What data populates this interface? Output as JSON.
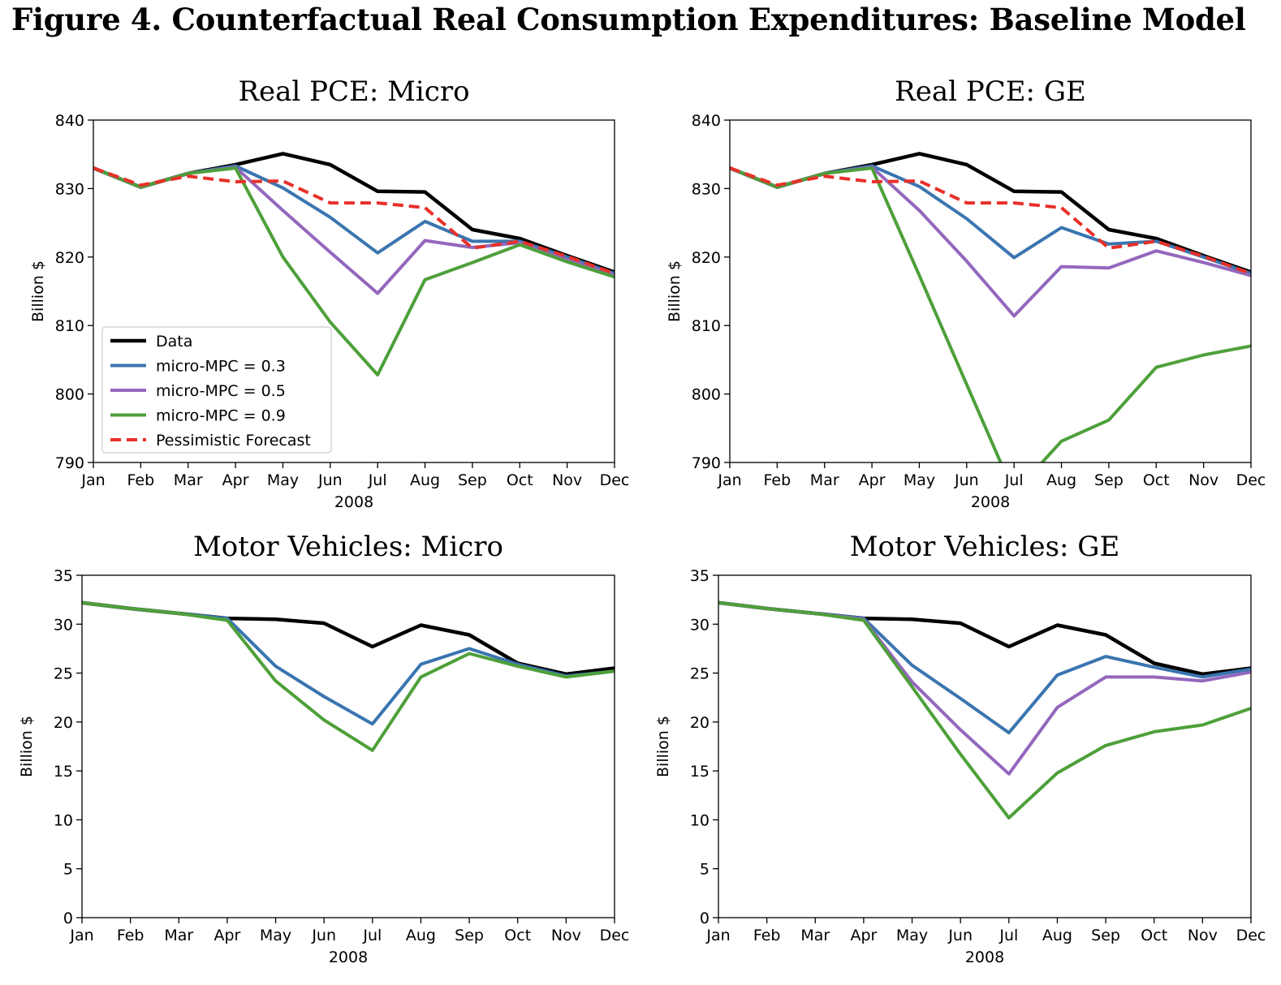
{
  "figure_title": "Figure 4. Counterfactual Real Consumption Expenditures: Baseline Model",
  "colors": {
    "Data": "#000000",
    "micro-MPC = 0.3": "#3a75b0",
    "micro-MPC = 0.5": "#9467bd",
    "micro-MPC = 0.9": "#4ea03a",
    "Pessimistic Forecast": "#e8302a"
  },
  "chart_data": [
    {
      "type": "line",
      "title": "Real PCE: Micro",
      "xlabel": "2008",
      "ylabel": "Billion $",
      "ylim": [
        790,
        840
      ],
      "yticks": [
        790,
        800,
        810,
        820,
        830,
        840
      ],
      "grid": false,
      "legend": "lower-left",
      "categories": [
        "Jan",
        "Feb",
        "Mar",
        "Apr",
        "May",
        "Jun",
        "Jul",
        "Aug",
        "Sep",
        "Oct",
        "Nov",
        "Dec"
      ],
      "series": [
        {
          "name": "Data",
          "style": "solid",
          "values": [
            833,
            830.2,
            832.2,
            833.5,
            835.1,
            833.5,
            829.6,
            829.5,
            824,
            822.7,
            820.2,
            817.8
          ]
        },
        {
          "name": "micro-MPC = 0.3",
          "style": "solid",
          "values": [
            833,
            830.2,
            832.2,
            833.3,
            830.1,
            825.8,
            820.6,
            825.2,
            822.3,
            822.3,
            820,
            817.6
          ]
        },
        {
          "name": "micro-MPC = 0.5",
          "style": "solid",
          "values": [
            833,
            830.2,
            832.2,
            833.1,
            826.8,
            820.7,
            814.7,
            822.4,
            821.4,
            822.1,
            819.6,
            817.4
          ]
        },
        {
          "name": "micro-MPC = 0.9",
          "style": "solid",
          "values": [
            833,
            830.2,
            832.2,
            833,
            820,
            810.5,
            802.8,
            816.7,
            819.2,
            821.8,
            819.3,
            817.1
          ]
        },
        {
          "name": "Pessimistic Forecast",
          "style": "dashed",
          "values": [
            833,
            830.5,
            831.8,
            831,
            831.1,
            827.9,
            827.9,
            827.2,
            821.3,
            822.3,
            820.1,
            817.6
          ]
        }
      ]
    },
    {
      "type": "line",
      "title": "Real PCE: GE",
      "xlabel": "2008",
      "ylabel": "Billion $",
      "ylim": [
        790,
        840
      ],
      "yticks": [
        790,
        800,
        810,
        820,
        830,
        840
      ],
      "grid": false,
      "categories": [
        "Jan",
        "Feb",
        "Mar",
        "Apr",
        "May",
        "Jun",
        "Jul",
        "Aug",
        "Sep",
        "Oct",
        "Nov",
        "Dec"
      ],
      "series": [
        {
          "name": "Data",
          "style": "solid",
          "values": [
            833,
            830.2,
            832.2,
            833.5,
            835.1,
            833.5,
            829.6,
            829.5,
            824,
            822.7,
            820.2,
            817.8
          ]
        },
        {
          "name": "micro-MPC = 0.3",
          "style": "solid",
          "values": [
            833,
            830.2,
            832.2,
            833.3,
            830.3,
            825.6,
            819.9,
            824.3,
            821.9,
            822.3,
            820,
            817.6
          ]
        },
        {
          "name": "micro-MPC = 0.5",
          "style": "solid",
          "values": [
            833,
            830.2,
            832.2,
            833.1,
            826.8,
            819.4,
            811.4,
            818.6,
            818.4,
            820.9,
            819.2,
            817.3
          ]
        },
        {
          "name": "micro-MPC = 0.9",
          "style": "solid",
          "values": [
            833,
            830.2,
            832.2,
            833,
            817.3,
            801.4,
            785.5,
            793.1,
            796.2,
            803.9,
            805.7,
            807
          ]
        },
        {
          "name": "Pessimistic Forecast",
          "style": "dashed",
          "values": [
            833,
            830.5,
            831.8,
            831,
            831.1,
            827.9,
            827.9,
            827.2,
            821.3,
            822.3,
            820.1,
            817.6
          ]
        }
      ]
    },
    {
      "type": "line",
      "title": "Motor Vehicles:  Micro",
      "xlabel": "2008",
      "ylabel": "Billion $",
      "ylim": [
        0,
        35
      ],
      "yticks": [
        0,
        5,
        10,
        15,
        20,
        25,
        30,
        35
      ],
      "grid": false,
      "categories": [
        "Jan",
        "Feb",
        "Mar",
        "Apr",
        "May",
        "Jun",
        "Jul",
        "Aug",
        "Sep",
        "Oct",
        "Nov",
        "Dec"
      ],
      "series": [
        {
          "name": "Data",
          "style": "solid",
          "values": [
            32.2,
            31.6,
            31.1,
            30.6,
            30.5,
            30.1,
            27.7,
            29.9,
            28.9,
            26,
            24.9,
            25.5
          ]
        },
        {
          "name": "micro-MPC = 0.3",
          "style": "solid",
          "values": [
            32.2,
            31.6,
            31.1,
            30.6,
            25.7,
            22.6,
            19.8,
            25.9,
            27.5,
            25.9,
            24.7,
            25.2
          ]
        },
        {
          "name": "micro-MPC = 0.9",
          "style": "solid",
          "values": [
            32.2,
            31.6,
            31.1,
            30.4,
            24.2,
            20.2,
            17.1,
            24.6,
            27,
            25.7,
            24.6,
            25.2
          ]
        }
      ]
    },
    {
      "type": "line",
      "title": "Motor Vehicles:  GE",
      "xlabel": "2008",
      "ylabel": "Billion $",
      "ylim": [
        0,
        35
      ],
      "yticks": [
        0,
        5,
        10,
        15,
        20,
        25,
        30,
        35
      ],
      "grid": false,
      "categories": [
        "Jan",
        "Feb",
        "Mar",
        "Apr",
        "May",
        "Jun",
        "Jul",
        "Aug",
        "Sep",
        "Oct",
        "Nov",
        "Dec"
      ],
      "series": [
        {
          "name": "Data",
          "style": "solid",
          "values": [
            32.2,
            31.6,
            31.1,
            30.6,
            30.5,
            30.1,
            27.7,
            29.9,
            28.9,
            26,
            24.9,
            25.5
          ]
        },
        {
          "name": "micro-MPC = 0.3",
          "style": "solid",
          "values": [
            32.2,
            31.6,
            31.1,
            30.6,
            25.8,
            22.4,
            18.9,
            24.8,
            26.7,
            25.6,
            24.6,
            25.4
          ]
        },
        {
          "name": "micro-MPC = 0.5",
          "style": "solid",
          "values": [
            32.2,
            31.6,
            31.1,
            30.5,
            24.1,
            19.2,
            14.7,
            21.5,
            24.6,
            24.6,
            24.2,
            25.1
          ]
        },
        {
          "name": "micro-MPC = 0.9",
          "style": "solid",
          "values": [
            32.2,
            31.6,
            31.1,
            30.4,
            23.6,
            16.7,
            10.2,
            14.8,
            17.6,
            19,
            19.7,
            21.4
          ]
        }
      ]
    }
  ],
  "legend": {
    "entries": [
      "Data",
      "micro-MPC = 0.3",
      "micro-MPC = 0.5",
      "micro-MPC = 0.9",
      "Pessimistic Forecast"
    ]
  }
}
